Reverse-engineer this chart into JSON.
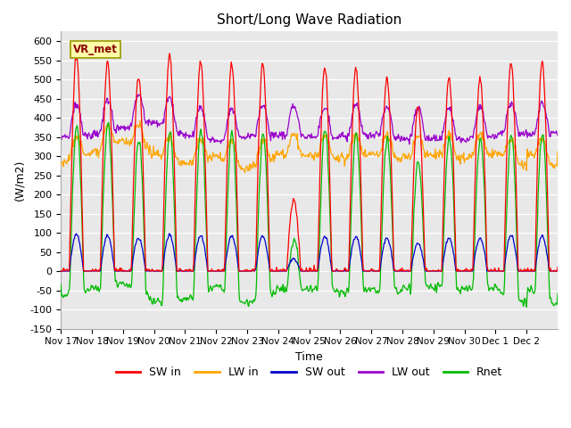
{
  "title": "Short/Long Wave Radiation",
  "xlabel": "Time",
  "ylabel": "(W/m2)",
  "ylim": [
    -150,
    625
  ],
  "yticks": [
    -150,
    -100,
    -50,
    0,
    50,
    100,
    150,
    200,
    250,
    300,
    350,
    400,
    450,
    500,
    550,
    600
  ],
  "x_labels": [
    "Nov 17",
    "Nov 18",
    "Nov 19",
    "Nov 20",
    "Nov 21",
    "Nov 22",
    "Nov 23",
    "Nov 24",
    "Nov 25",
    "Nov 26",
    "Nov 27",
    "Nov 28",
    "Nov 29",
    "Nov 30",
    "Dec 1",
    "Dec 2"
  ],
  "station_label": "VR_met",
  "plot_bg_color": "#e8e8e8",
  "fig_bg_color": "#ffffff",
  "grid_color": "#ffffff",
  "legend": [
    {
      "label": "SW in",
      "color": "#ff0000"
    },
    {
      "label": "LW in",
      "color": "#ffa500"
    },
    {
      "label": "SW out",
      "color": "#0000cc"
    },
    {
      "label": "LW out",
      "color": "#9900cc"
    },
    {
      "label": "Rnet",
      "color": "#00bb00"
    }
  ],
  "sw_in_peaks": [
    560,
    545,
    510,
    560,
    545,
    540,
    540,
    185,
    530,
    530,
    505,
    430,
    505,
    505,
    545,
    545
  ],
  "lw_in_base": [
    285,
    310,
    340,
    310,
    280,
    300,
    265,
    305,
    300,
    295,
    305,
    295,
    305,
    295,
    310,
    270
  ],
  "lw_out_base": [
    350,
    355,
    375,
    390,
    355,
    340,
    350,
    355,
    350,
    350,
    355,
    345,
    345,
    345,
    355,
    360
  ]
}
